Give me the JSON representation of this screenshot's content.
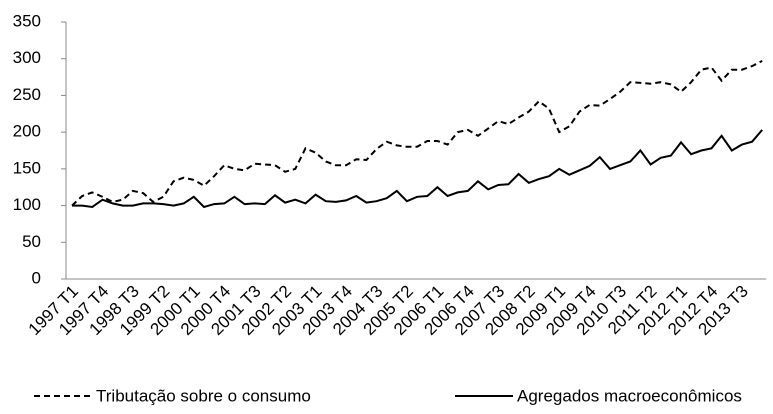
{
  "chart_data": {
    "type": "line",
    "categories": [
      "1997 T1",
      null,
      null,
      "1997 T4",
      null,
      null,
      "1998 T3",
      null,
      null,
      "1999 T2",
      null,
      null,
      "2000 T1",
      null,
      null,
      "2000 T4",
      null,
      null,
      "2001 T3",
      null,
      null,
      "2002 T2",
      null,
      null,
      "2003 T1",
      null,
      null,
      "2003 T4",
      null,
      null,
      "2004 T3",
      null,
      null,
      "2005 T2",
      null,
      null,
      "2006 T1",
      null,
      null,
      "2006 T4",
      null,
      null,
      "2007 T3",
      null,
      null,
      "2008 T2",
      null,
      null,
      "2009 T1",
      null,
      null,
      "2009 T4",
      null,
      null,
      "2010 T3",
      null,
      null,
      "2011 T2",
      null,
      null,
      "2012 T1",
      null,
      null,
      "2012 T4",
      null,
      null,
      "2013 T3",
      null,
      null
    ],
    "series": [
      {
        "name": "Tributação sobre o consumo",
        "color": "#000000",
        "line_style": "dashed",
        "values": [
          100,
          113,
          118,
          112,
          105,
          108,
          120,
          117,
          105,
          112,
          133,
          138,
          135,
          127,
          140,
          155,
          150,
          148,
          157,
          156,
          155,
          146,
          150,
          178,
          172,
          160,
          155,
          155,
          163,
          162,
          177,
          187,
          182,
          180,
          180,
          188,
          188,
          183,
          200,
          203,
          195,
          205,
          215,
          211,
          220,
          228,
          242,
          232,
          200,
          208,
          228,
          237,
          236,
          245,
          255,
          268,
          267,
          266,
          268,
          265,
          255,
          268,
          285,
          288,
          270,
          285,
          285,
          290,
          297
        ]
      },
      {
        "name": "Agregados macroeconômicos",
        "color": "#000000",
        "line_style": "solid",
        "values": [
          100,
          100,
          98,
          108,
          103,
          100,
          100,
          103,
          103,
          102,
          100,
          103,
          112,
          98,
          102,
          103,
          112,
          102,
          103,
          102,
          114,
          104,
          108,
          103,
          115,
          106,
          105,
          107,
          113,
          104,
          106,
          110,
          120,
          106,
          112,
          113,
          125,
          113,
          118,
          120,
          133,
          122,
          128,
          129,
          143,
          131,
          136,
          140,
          150,
          142,
          148,
          154,
          166,
          150,
          155,
          160,
          175,
          156,
          165,
          168,
          186,
          170,
          175,
          178,
          195,
          175,
          183,
          187,
          203
        ]
      }
    ],
    "ylim": [
      0,
      350
    ],
    "yticks": [
      0,
      50,
      100,
      150,
      200,
      250,
      300,
      350
    ],
    "grid": false,
    "legend": "bottom"
  }
}
